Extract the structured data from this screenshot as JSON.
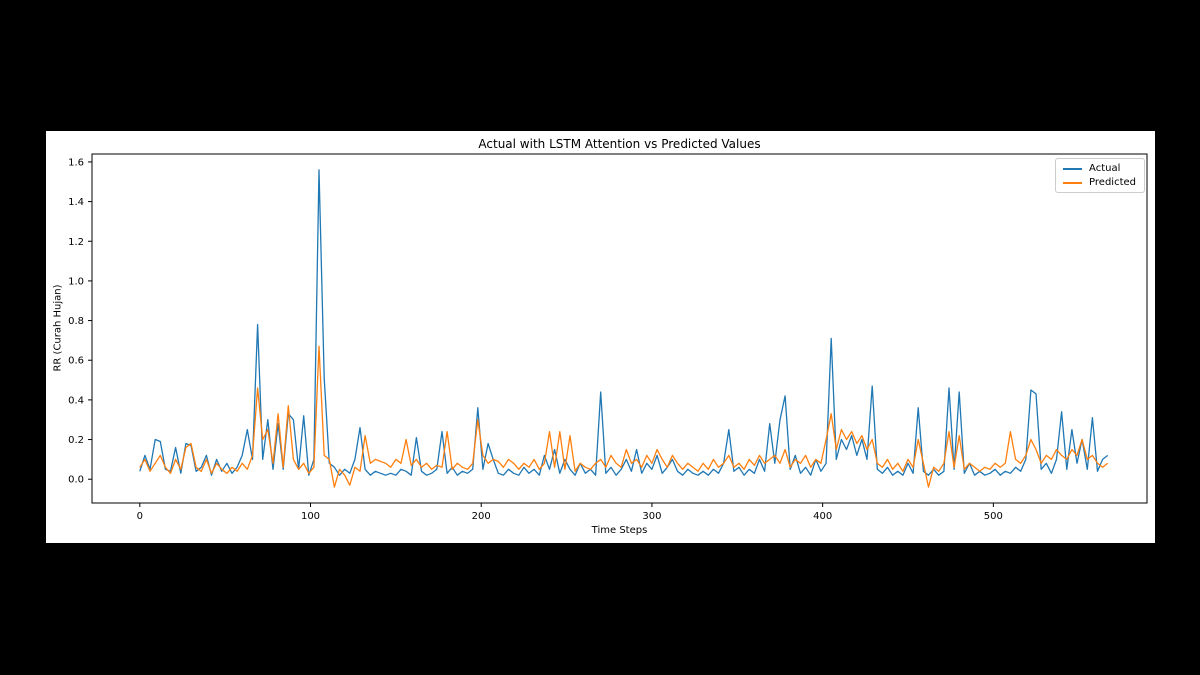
{
  "canvas": {
    "background_color": "#000000",
    "figure_background_color": "#ffffff",
    "spine_color": "#000000",
    "tick_color": "#000000"
  },
  "chart_data": {
    "type": "line",
    "title": "Actual with LSTM Attention vs Predicted Values",
    "xlabel": "Time Steps",
    "ylabel": "RR (Curah Hujan)",
    "xlim": [
      -28,
      590
    ],
    "ylim": [
      -0.12,
      1.64
    ],
    "x_ticks": [
      0,
      100,
      200,
      300,
      400,
      500
    ],
    "y_ticks": [
      0.0,
      0.2,
      0.4,
      0.6,
      0.8,
      1.0,
      1.2,
      1.4,
      1.6
    ],
    "grid": false,
    "legend_position": "upper right",
    "x_start": 0,
    "x_step": 3,
    "series": [
      {
        "name": "Actual",
        "color": "#1f77b4",
        "values": [
          0.04,
          0.12,
          0.05,
          0.2,
          0.19,
          0.05,
          0.04,
          0.16,
          0.03,
          0.18,
          0.17,
          0.04,
          0.06,
          0.12,
          0.02,
          0.1,
          0.04,
          0.08,
          0.03,
          0.06,
          0.12,
          0.25,
          0.1,
          0.78,
          0.1,
          0.3,
          0.05,
          0.28,
          0.05,
          0.33,
          0.3,
          0.05,
          0.32,
          0.02,
          0.1,
          1.56,
          0.51,
          0.08,
          0.06,
          0.02,
          0.05,
          0.03,
          0.1,
          0.26,
          0.05,
          0.02,
          0.04,
          0.03,
          0.02,
          0.03,
          0.02,
          0.05,
          0.04,
          0.02,
          0.21,
          0.04,
          0.02,
          0.03,
          0.05,
          0.24,
          0.03,
          0.06,
          0.02,
          0.04,
          0.03,
          0.05,
          0.36,
          0.05,
          0.18,
          0.1,
          0.03,
          0.02,
          0.05,
          0.03,
          0.02,
          0.06,
          0.03,
          0.05,
          0.02,
          0.12,
          0.05,
          0.15,
          0.03,
          0.1,
          0.05,
          0.02,
          0.08,
          0.03,
          0.05,
          0.02,
          0.44,
          0.03,
          0.06,
          0.02,
          0.05,
          0.1,
          0.04,
          0.15,
          0.03,
          0.08,
          0.05,
          0.12,
          0.03,
          0.06,
          0.1,
          0.04,
          0.02,
          0.05,
          0.03,
          0.02,
          0.04,
          0.02,
          0.05,
          0.03,
          0.08,
          0.25,
          0.04,
          0.06,
          0.02,
          0.05,
          0.03,
          0.1,
          0.04,
          0.28,
          0.08,
          0.3,
          0.42,
          0.05,
          0.12,
          0.03,
          0.06,
          0.02,
          0.1,
          0.04,
          0.08,
          0.71,
          0.1,
          0.2,
          0.15,
          0.22,
          0.12,
          0.2,
          0.1,
          0.47,
          0.05,
          0.03,
          0.06,
          0.02,
          0.04,
          0.02,
          0.08,
          0.03,
          0.36,
          0.04,
          0.02,
          0.05,
          0.02,
          0.04,
          0.46,
          0.05,
          0.44,
          0.03,
          0.08,
          0.02,
          0.04,
          0.02,
          0.03,
          0.05,
          0.02,
          0.04,
          0.03,
          0.06,
          0.04,
          0.1,
          0.45,
          0.43,
          0.05,
          0.08,
          0.03,
          0.1,
          0.34,
          0.05,
          0.25,
          0.08,
          0.2,
          0.05,
          0.31,
          0.04,
          0.1,
          0.12
        ]
      },
      {
        "name": "Predicted",
        "color": "#ff7f0e",
        "values": [
          0.06,
          0.1,
          0.04,
          0.08,
          0.12,
          0.06,
          0.03,
          0.1,
          0.05,
          0.16,
          0.18,
          0.06,
          0.04,
          0.1,
          0.03,
          0.08,
          0.05,
          0.03,
          0.06,
          0.04,
          0.08,
          0.05,
          0.12,
          0.46,
          0.2,
          0.25,
          0.08,
          0.33,
          0.06,
          0.37,
          0.1,
          0.05,
          0.08,
          0.03,
          0.06,
          0.67,
          0.12,
          0.1,
          -0.04,
          0.05,
          0.02,
          -0.03,
          0.06,
          0.04,
          0.22,
          0.08,
          0.1,
          0.09,
          0.08,
          0.06,
          0.1,
          0.08,
          0.2,
          0.07,
          0.1,
          0.06,
          0.08,
          0.05,
          0.07,
          0.06,
          0.24,
          0.05,
          0.08,
          0.06,
          0.05,
          0.08,
          0.3,
          0.12,
          0.08,
          0.1,
          0.09,
          0.06,
          0.1,
          0.08,
          0.05,
          0.08,
          0.06,
          0.1,
          0.05,
          0.08,
          0.24,
          0.06,
          0.24,
          0.05,
          0.22,
          0.04,
          0.08,
          0.06,
          0.05,
          0.08,
          0.1,
          0.06,
          0.12,
          0.08,
          0.06,
          0.15,
          0.08,
          0.1,
          0.06,
          0.12,
          0.08,
          0.15,
          0.1,
          0.06,
          0.12,
          0.08,
          0.05,
          0.08,
          0.06,
          0.04,
          0.08,
          0.05,
          0.1,
          0.06,
          0.08,
          0.12,
          0.06,
          0.08,
          0.05,
          0.1,
          0.07,
          0.12,
          0.08,
          0.1,
          0.12,
          0.08,
          0.15,
          0.06,
          0.1,
          0.08,
          0.12,
          0.06,
          0.1,
          0.08,
          0.2,
          0.33,
          0.15,
          0.25,
          0.2,
          0.24,
          0.18,
          0.22,
          0.15,
          0.2,
          0.08,
          0.06,
          0.1,
          0.05,
          0.08,
          0.04,
          0.1,
          0.06,
          0.2,
          0.08,
          -0.04,
          0.06,
          0.04,
          0.08,
          0.24,
          0.06,
          0.22,
          0.05,
          0.08,
          0.06,
          0.04,
          0.06,
          0.05,
          0.08,
          0.06,
          0.08,
          0.24,
          0.1,
          0.08,
          0.12,
          0.2,
          0.15,
          0.08,
          0.12,
          0.1,
          0.15,
          0.12,
          0.1,
          0.15,
          0.12,
          0.2,
          0.1,
          0.12,
          0.08,
          0.06,
          0.08
        ]
      }
    ]
  }
}
